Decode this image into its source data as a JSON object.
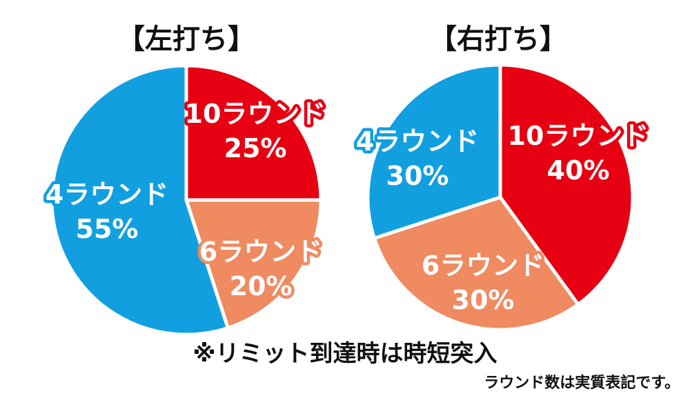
{
  "footnote": "※リミット到達時は時短突入",
  "footnote2": "ラウンド数は実質表記です。",
  "chart_data": [
    {
      "type": "pie",
      "title": "【左打ち】",
      "slices": [
        {
          "label": "10ラウンド",
          "value": 25,
          "value_text": "25%",
          "color": "#e60012"
        },
        {
          "label": "6ラウンド",
          "value": 20,
          "value_text": "20%",
          "color": "#ef8a61"
        },
        {
          "label": "4ラウンド",
          "value": 55,
          "value_text": "55%",
          "color": "#119fe0"
        }
      ]
    },
    {
      "type": "pie",
      "title": "【右打ち】",
      "slices": [
        {
          "label": "10ラウンド",
          "value": 40,
          "value_text": "40%",
          "color": "#e60012"
        },
        {
          "label": "6ラウンド",
          "value": 30,
          "value_text": "30%",
          "color": "#ef8a61"
        },
        {
          "label": "4ラウンド",
          "value": 30,
          "value_text": "30%",
          "color": "#119fe0"
        }
      ]
    }
  ]
}
